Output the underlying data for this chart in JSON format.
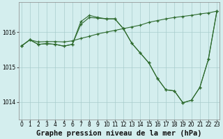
{
  "background_color": "#d4eeee",
  "grid_color": "#a8cccc",
  "line_color": "#2d6a2d",
  "title": "Graphe pression niveau de la mer (hPa)",
  "ylim": [
    1013.5,
    1016.85
  ],
  "xlim": [
    -0.3,
    23.3
  ],
  "yticks": [
    1014,
    1015,
    1016
  ],
  "xticks": [
    0,
    1,
    2,
    3,
    4,
    5,
    6,
    7,
    8,
    9,
    10,
    11,
    12,
    13,
    14,
    15,
    16,
    17,
    18,
    19,
    20,
    21,
    22,
    23
  ],
  "series1_x": [
    0,
    1,
    2,
    3,
    4,
    5,
    6,
    7,
    8,
    9,
    10,
    11,
    12,
    13,
    14,
    15,
    16,
    17,
    18,
    19,
    20,
    21,
    22,
    23
  ],
  "series1_y": [
    1015.6,
    1015.78,
    1015.72,
    1015.73,
    1015.73,
    1015.72,
    1015.75,
    1015.82,
    1015.88,
    1015.95,
    1016.0,
    1016.05,
    1016.1,
    1016.15,
    1016.2,
    1016.28,
    1016.33,
    1016.38,
    1016.42,
    1016.45,
    1016.48,
    1016.52,
    1016.55,
    1016.6
  ],
  "series2_x": [
    0,
    1,
    2,
    3,
    4,
    5,
    6,
    7,
    8,
    9,
    10,
    11,
    12,
    13,
    14,
    15,
    16,
    17,
    18,
    19,
    20,
    21,
    22,
    23
  ],
  "series2_y": [
    1015.6,
    1015.78,
    1015.65,
    1015.67,
    1015.65,
    1015.6,
    1015.65,
    1016.3,
    1016.48,
    1016.42,
    1016.38,
    1016.38,
    1016.1,
    1015.68,
    1015.4,
    1015.12,
    1014.68,
    1014.35,
    1014.32,
    1013.98,
    1014.05,
    1014.42,
    1015.22,
    1016.6
  ],
  "series3_x": [
    0,
    1,
    2,
    3,
    4,
    5,
    6,
    7,
    8,
    9,
    10,
    11,
    12,
    13,
    14,
    15,
    16,
    17,
    18,
    19,
    20,
    21,
    22,
    23
  ],
  "series3_y": [
    1015.6,
    1015.78,
    1015.65,
    1015.67,
    1015.65,
    1015.6,
    1015.65,
    1016.22,
    1016.42,
    1016.4,
    1016.38,
    1016.38,
    1016.1,
    1015.68,
    1015.4,
    1015.12,
    1014.68,
    1014.35,
    1014.32,
    1013.98,
    1014.05,
    1014.42,
    1015.22,
    1016.6
  ],
  "title_fontsize": 7.5,
  "tick_fontsize": 5.5
}
